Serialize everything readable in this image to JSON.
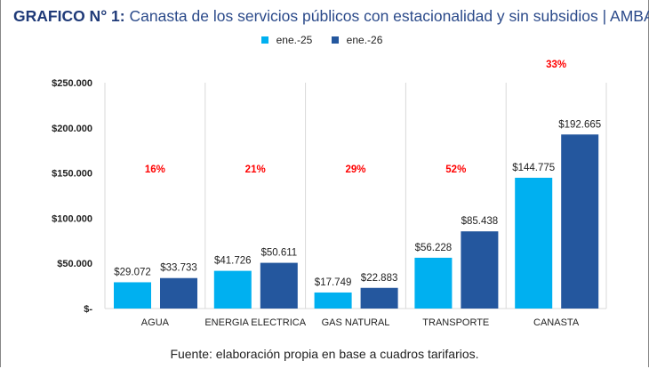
{
  "title_bold": "GRAFICO N° 1:",
  "title_rest": " Canasta de los servicios públicos con estacionalidad y sin subsidios | AMBA",
  "source": "Fuente: elaboración propia en base a cuadros tarifarios.",
  "chart_data": {
    "type": "bar",
    "categories": [
      "AGUA",
      "ENERGIA ELECTRICA",
      "GAS NATURAL",
      "TRANSPORTE",
      "CANASTA"
    ],
    "series": [
      {
        "name": "ene.-25",
        "color": "#00b0f0",
        "values": [
          29072,
          41726,
          17749,
          56228,
          144775
        ],
        "labels": [
          "$29.072",
          "$41.726",
          "$17.749",
          "$56.228",
          "$144.775"
        ]
      },
      {
        "name": "ene.-26",
        "color": "#24579e",
        "values": [
          33733,
          50611,
          22883,
          85438,
          192665
        ],
        "labels": [
          "$33.733",
          "$50.611",
          "$22.883",
          "$85.438",
          "$192.665"
        ]
      }
    ],
    "annotations": [
      "16%",
      "21%",
      "29%",
      "52%",
      "33%"
    ],
    "annotation_color": "#ff0000",
    "yticks": [
      0,
      50000,
      100000,
      150000,
      200000,
      250000
    ],
    "ytick_labels": [
      "$-",
      "$50.000",
      "$100.000",
      "$150.000",
      "$200.000",
      "$250.000"
    ],
    "ylim": [
      0,
      250000
    ],
    "legend_position": "top",
    "grid": false
  }
}
